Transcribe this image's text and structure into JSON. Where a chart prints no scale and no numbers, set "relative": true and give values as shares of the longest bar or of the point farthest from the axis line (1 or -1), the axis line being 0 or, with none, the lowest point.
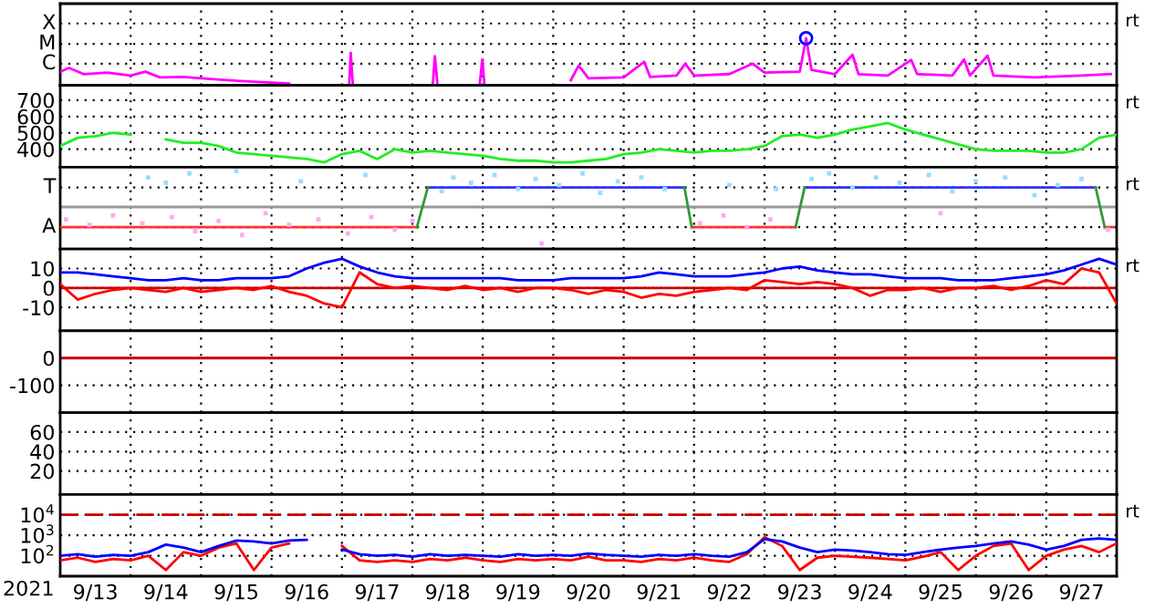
{
  "chart_data": [
    {
      "type": "line",
      "relative": true,
      "grid": true,
      "tick_labels": "y",
      "annotations": [
        "rt"
      ],
      "xlim": [
        "2021-09-13T00:00",
        "2021-09-28T00:00"
      ],
      "xticks": [
        {
          "value": "2021-09-14T00:00",
          "label": null
        },
        {
          "value": "2021-09-15T00:00",
          "label": null
        },
        {
          "value": "2021-09-16T00:00",
          "label": null
        },
        {
          "value": "2021-09-17T00:00",
          "label": null
        },
        {
          "value": "2021-09-18T00:00",
          "label": null
        },
        {
          "value": "2021-09-19T00:00",
          "label": null
        },
        {
          "value": "2021-09-20T00:00",
          "label": null
        },
        {
          "value": "2021-09-21T00:00",
          "label": null
        },
        {
          "value": "2021-09-22T00:00",
          "label": null
        },
        {
          "value": "2021-09-23T00:00",
          "label": null
        },
        {
          "value": "2021-09-24T00:00",
          "label": null
        },
        {
          "value": "2021-09-25T00:00",
          "label": null
        },
        {
          "value": "2021-09-26T00:00",
          "label": null
        },
        {
          "value": "2021-09-27T00:00",
          "label": null
        }
      ],
      "ref_lines": [
        {
          "axis": "y",
          "value": 0.46,
          "label": "C",
          "color": "#000000",
          "line_style": "dotted"
        },
        {
          "axis": "y",
          "value": 0.88,
          "label": "M",
          "color": "#000000",
          "line_style": "dotted"
        },
        {
          "axis": "y",
          "value": 1.31,
          "label": "X",
          "color": "#000000",
          "line_style": "dotted"
        }
      ],
      "series": [
        {
          "color": "#ff00ff",
          "x": [
            "2021-09-13T00:00",
            "2021-09-13T03:00",
            "2021-09-13T08:00",
            "2021-09-13T16:00",
            "2021-09-14T00:00",
            "2021-09-14T05:00",
            "2021-09-14T10:00",
            "2021-09-14T18:00",
            "2021-09-15T00:00",
            "2021-09-15T12:00",
            "2021-09-16T00:00",
            "2021-09-16T06:00",
            "2021-09-16T12:00",
            "2021-09-17T02:30",
            "2021-09-17T03:00",
            "2021-09-17T03:40",
            "2021-09-17T06:00",
            "2021-09-18T07:00",
            "2021-09-18T07:40",
            "2021-09-18T08:30",
            "2021-09-18T12:00",
            "2021-09-18T23:00",
            "2021-09-18T23:50",
            "2021-09-19T00:30",
            "2021-09-19T03:00",
            "2021-09-20T06:00",
            "2021-09-20T08:40",
            "2021-09-20T12:00",
            "2021-09-21T00:00",
            "2021-09-21T07:00",
            "2021-09-21T09:00",
            "2021-09-21T18:00",
            "2021-09-21T21:00",
            "2021-09-22T00:00",
            "2021-09-22T12:00",
            "2021-09-22T20:00",
            "2021-09-23T00:00",
            "2021-09-23T12:00",
            "2021-09-23T14:10",
            "2021-09-23T16:00",
            "2021-09-24T00:00",
            "2021-09-24T06:00",
            "2021-09-24T08:00",
            "2021-09-24T18:00",
            "2021-09-25T02:00",
            "2021-09-25T04:00",
            "2021-09-25T16:00",
            "2021-09-25T20:00",
            "2021-09-25T22:00",
            "2021-09-26T04:00",
            "2021-09-26T06:00",
            "2021-09-26T20:00",
            "2021-09-27T12:00",
            "2021-09-27T22:00"
          ],
          "values": [
            0.29,
            0.37,
            0.24,
            0.27,
            0.21,
            0.29,
            0.17,
            0.18,
            0.15,
            0.1,
            0.06,
            0.04,
            null,
            0.06,
            0.69,
            0.06,
            null,
            0.06,
            0.62,
            0.06,
            null,
            0.06,
            0.55,
            0.06,
            null,
            0.11,
            0.42,
            0.15,
            0.17,
            0.5,
            0.18,
            0.21,
            0.46,
            0.21,
            0.24,
            0.46,
            0.27,
            0.29,
            1.0,
            0.33,
            0.24,
            0.65,
            0.24,
            0.21,
            0.54,
            0.24,
            0.21,
            0.55,
            0.21,
            0.63,
            0.21,
            0.17,
            0.21,
            0.24
          ]
        },
        {
          "type": "scatter",
          "marker": "circle",
          "color": "#0000ff",
          "x": [
            "2021-09-23T14:10"
          ],
          "values": [
            1.0
          ]
        }
      ]
    },
    {
      "type": "line",
      "grid": true,
      "tick_labels": "y",
      "annotations": [
        "rt"
      ],
      "xlim": [
        "2021-09-13T00:00",
        "2021-09-28T00:00"
      ],
      "xticks": [
        {
          "value": "2021-09-14T00:00",
          "label": null
        },
        {
          "value": "2021-09-15T00:00",
          "label": null
        },
        {
          "value": "2021-09-16T00:00",
          "label": null
        },
        {
          "value": "2021-09-17T00:00",
          "label": null
        },
        {
          "value": "2021-09-18T00:00",
          "label": null
        },
        {
          "value": "2021-09-19T00:00",
          "label": null
        },
        {
          "value": "2021-09-20T00:00",
          "label": null
        },
        {
          "value": "2021-09-21T00:00",
          "label": null
        },
        {
          "value": "2021-09-22T00:00",
          "label": null
        },
        {
          "value": "2021-09-23T00:00",
          "label": null
        },
        {
          "value": "2021-09-24T00:00",
          "label": null
        },
        {
          "value": "2021-09-25T00:00",
          "label": null
        },
        {
          "value": "2021-09-26T00:00",
          "label": null
        },
        {
          "value": "2021-09-27T00:00",
          "label": null
        }
      ],
      "ylim": [
        290,
        790
      ],
      "yticks": [
        400,
        500,
        600,
        700
      ],
      "x": [
        "2021-09-13T00:00",
        "2021-09-13T06:00",
        "2021-09-13T12:00",
        "2021-09-13T18:00",
        "2021-09-14T00:00",
        "2021-09-14T06:00",
        "2021-09-14T12:00",
        "2021-09-14T18:00",
        "2021-09-15T00:00",
        "2021-09-15T06:00",
        "2021-09-15T12:00",
        "2021-09-15T18:00",
        "2021-09-16T00:00",
        "2021-09-16T06:00",
        "2021-09-16T12:00",
        "2021-09-16T18:00",
        "2021-09-17T00:00",
        "2021-09-17T06:00",
        "2021-09-17T12:00",
        "2021-09-17T18:00",
        "2021-09-18T00:00",
        "2021-09-18T06:00",
        "2021-09-18T12:00",
        "2021-09-18T18:00",
        "2021-09-19T00:00",
        "2021-09-19T06:00",
        "2021-09-19T12:00",
        "2021-09-19T18:00",
        "2021-09-20T00:00",
        "2021-09-20T06:00",
        "2021-09-20T12:00",
        "2021-09-20T18:00",
        "2021-09-21T00:00",
        "2021-09-21T06:00",
        "2021-09-21T12:00",
        "2021-09-21T18:00",
        "2021-09-22T00:00",
        "2021-09-22T06:00",
        "2021-09-22T12:00",
        "2021-09-22T18:00",
        "2021-09-23T00:00",
        "2021-09-23T06:00",
        "2021-09-23T12:00",
        "2021-09-23T18:00",
        "2021-09-24T00:00",
        "2021-09-24T06:00",
        "2021-09-24T12:00",
        "2021-09-24T18:00",
        "2021-09-25T00:00",
        "2021-09-25T06:00",
        "2021-09-25T12:00",
        "2021-09-25T18:00",
        "2021-09-26T00:00",
        "2021-09-26T06:00",
        "2021-09-26T12:00",
        "2021-09-26T18:00",
        "2021-09-27T00:00",
        "2021-09-27T06:00",
        "2021-09-27T12:00",
        "2021-09-27T18:00",
        "2021-09-28T00:00"
      ],
      "series": [
        {
          "color": "#22ee22",
          "values": [
            420,
            470,
            480,
            500,
            490,
            null,
            460,
            440,
            440,
            420,
            380,
            370,
            360,
            350,
            340,
            320,
            370,
            390,
            340,
            400,
            380,
            390,
            380,
            370,
            360,
            340,
            330,
            330,
            320,
            320,
            330,
            340,
            370,
            380,
            400,
            390,
            380,
            390,
            390,
            400,
            420,
            480,
            490,
            470,
            490,
            520,
            540,
            560,
            520,
            490,
            460,
            430,
            400,
            390,
            390,
            390,
            380,
            380,
            400,
            470,
            490
          ]
        }
      ]
    },
    {
      "type": "line",
      "relative": true,
      "grid": true,
      "tick_labels": "y",
      "annotations": [
        "rt"
      ],
      "xlim": [
        "2021-09-13T00:00",
        "2021-09-28T00:00"
      ],
      "xticks": [
        {
          "value": "2021-09-14T00:00",
          "label": null
        },
        {
          "value": "2021-09-15T00:00",
          "label": null
        },
        {
          "value": "2021-09-16T00:00",
          "label": null
        },
        {
          "value": "2021-09-17T00:00",
          "label": null
        },
        {
          "value": "2021-09-18T00:00",
          "label": null
        },
        {
          "value": "2021-09-19T00:00",
          "label": null
        },
        {
          "value": "2021-09-20T00:00",
          "label": null
        },
        {
          "value": "2021-09-21T00:00",
          "label": null
        },
        {
          "value": "2021-09-22T00:00",
          "label": null
        },
        {
          "value": "2021-09-23T00:00",
          "label": null
        },
        {
          "value": "2021-09-24T00:00",
          "label": null
        },
        {
          "value": "2021-09-25T00:00",
          "label": null
        },
        {
          "value": "2021-09-26T00:00",
          "label": null
        },
        {
          "value": "2021-09-27T00:00",
          "label": null
        }
      ],
      "ref_lines": [
        {
          "axis": "y",
          "value": 0.28,
          "label": "A",
          "color": "#000000",
          "line_style": "dotted"
        },
        {
          "axis": "y",
          "value": 0.79,
          "label": "T",
          "color": "#000000",
          "line_style": "dotted"
        },
        {
          "axis": "y",
          "value": 0.54,
          "color": "#999999",
          "line_style": "solid"
        }
      ],
      "series": [
        {
          "type": "scatter",
          "marker": "square",
          "color": "#99ddff",
          "x": [
            "2021-09-14T06:00",
            "2021-09-14T12:00",
            "2021-09-14T20:00",
            "2021-09-15T12:00",
            "2021-09-16T10:00",
            "2021-09-17T08:00",
            "2021-09-18T10:00",
            "2021-09-18T14:00",
            "2021-09-18T20:00",
            "2021-09-19T04:00",
            "2021-09-19T12:00",
            "2021-09-19T18:00",
            "2021-09-20T02:00",
            "2021-09-20T10:00",
            "2021-09-20T16:00",
            "2021-09-20T22:00",
            "2021-09-21T06:00",
            "2021-09-21T14:00",
            "2021-09-22T12:00",
            "2021-09-23T04:00",
            "2021-09-23T16:00",
            "2021-09-23T22:00",
            "2021-09-24T06:00",
            "2021-09-24T14:00",
            "2021-09-24T22:00",
            "2021-09-25T08:00",
            "2021-09-25T16:00",
            "2021-09-26T00:00",
            "2021-09-26T10:00",
            "2021-09-26T20:00",
            "2021-09-27T04:00",
            "2021-09-27T12:00"
          ],
          "values": [
            0.92,
            0.85,
            0.97,
            1.0,
            0.87,
            0.95,
            0.74,
            0.92,
            0.85,
            0.95,
            0.77,
            0.9,
            0.82,
            0.97,
            0.72,
            0.87,
            0.92,
            0.77,
            0.82,
            0.77,
            0.9,
            0.97,
            0.79,
            0.92,
            0.85,
            0.95,
            0.74,
            0.87,
            0.92,
            0.69,
            0.82,
            0.9
          ]
        },
        {
          "type": "scatter",
          "marker": "square",
          "color": "#ffaaee",
          "x": [
            "2021-09-13T02:00",
            "2021-09-13T10:00",
            "2021-09-13T18:00",
            "2021-09-14T04:00",
            "2021-09-14T14:00",
            "2021-09-14T22:00",
            "2021-09-15T06:00",
            "2021-09-15T14:00",
            "2021-09-15T22:00",
            "2021-09-16T06:00",
            "2021-09-16T16:00",
            "2021-09-17T02:00",
            "2021-09-17T10:00",
            "2021-09-17T18:00",
            "2021-09-18T00:00",
            "2021-09-19T20:00",
            "2021-09-22T02:00",
            "2021-09-22T10:00",
            "2021-09-22T18:00",
            "2021-09-23T02:00",
            "2021-09-25T12:00",
            "2021-09-27T21:00"
          ],
          "values": [
            0.38,
            0.31,
            0.43,
            0.33,
            0.41,
            0.23,
            0.36,
            0.18,
            0.46,
            0.31,
            0.38,
            0.2,
            0.41,
            0.25,
            0.36,
            0.07,
            0.33,
            0.43,
            0.28,
            0.38,
            0.46,
            0.25
          ]
        },
        {
          "color": "#ff3333",
          "x": [
            "2021-09-13T00:00",
            "2021-09-18T01:33",
            "2021-09-20T00:00",
            "2021-09-21T23:11",
            "2021-09-23T10:34",
            "2021-09-25T00:00",
            "2021-09-27T19:56",
            "2021-09-27T23:00"
          ],
          "values": [
            0.28,
            0.28,
            null,
            0.28,
            0.28,
            null,
            0.28,
            0.28
          ]
        },
        {
          "color": "#3333ff",
          "x": [
            "2021-09-18T05:16",
            "2021-09-21T20:43",
            "2021-09-22T12:00",
            "2021-09-23T13:40",
            "2021-09-27T16:50"
          ],
          "values": [
            0.79,
            0.79,
            null,
            0.79,
            0.79
          ]
        },
        {
          "color": "#339933",
          "x": [
            "2021-09-18T01:33",
            "2021-09-18T05:16",
            "2021-09-20T00:00",
            "2021-09-21T20:43",
            "2021-09-21T23:11",
            "2021-09-22T12:00",
            "2021-09-23T10:34",
            "2021-09-23T13:40",
            "2021-09-25T00:00",
            "2021-09-27T16:50",
            "2021-09-27T19:56"
          ],
          "values": [
            0.28,
            0.79,
            null,
            0.79,
            0.28,
            null,
            0.28,
            0.79,
            null,
            0.79,
            0.28
          ]
        }
      ]
    },
    {
      "type": "line",
      "grid": true,
      "tick_labels": "y",
      "annotations": [
        "rt"
      ],
      "xlim": [
        "2021-09-13T00:00",
        "2021-09-28T00:00"
      ],
      "xticks": [
        {
          "value": "2021-09-14T00:00",
          "label": null
        },
        {
          "value": "2021-09-15T00:00",
          "label": null
        },
        {
          "value": "2021-09-16T00:00",
          "label": null
        },
        {
          "value": "2021-09-17T00:00",
          "label": null
        },
        {
          "value": "2021-09-18T00:00",
          "label": null
        },
        {
          "value": "2021-09-19T00:00",
          "label": null
        },
        {
          "value": "2021-09-20T00:00",
          "label": null
        },
        {
          "value": "2021-09-21T00:00",
          "label": null
        },
        {
          "value": "2021-09-22T00:00",
          "label": null
        },
        {
          "value": "2021-09-23T00:00",
          "label": null
        },
        {
          "value": "2021-09-24T00:00",
          "label": null
        },
        {
          "value": "2021-09-25T00:00",
          "label": null
        },
        {
          "value": "2021-09-26T00:00",
          "label": null
        },
        {
          "value": "2021-09-27T00:00",
          "label": null
        }
      ],
      "ylim": [
        -22,
        20
      ],
      "yticks": [
        -10,
        0,
        10
      ],
      "ref_lines": [
        {
          "axis": "y",
          "value": 0,
          "color": "#cc0000",
          "line_style": "solid"
        }
      ],
      "x": [
        "2021-09-13T00:00",
        "2021-09-13T06:00",
        "2021-09-13T12:00",
        "2021-09-13T18:00",
        "2021-09-14T00:00",
        "2021-09-14T06:00",
        "2021-09-14T12:00",
        "2021-09-14T18:00",
        "2021-09-15T00:00",
        "2021-09-15T06:00",
        "2021-09-15T12:00",
        "2021-09-15T18:00",
        "2021-09-16T00:00",
        "2021-09-16T06:00",
        "2021-09-16T12:00",
        "2021-09-16T18:00",
        "2021-09-17T00:00",
        "2021-09-17T06:00",
        "2021-09-17T12:00",
        "2021-09-17T18:00",
        "2021-09-18T00:00",
        "2021-09-18T06:00",
        "2021-09-18T12:00",
        "2021-09-18T18:00",
        "2021-09-19T00:00",
        "2021-09-19T06:00",
        "2021-09-19T12:00",
        "2021-09-19T18:00",
        "2021-09-20T00:00",
        "2021-09-20T06:00",
        "2021-09-20T12:00",
        "2021-09-20T18:00",
        "2021-09-21T00:00",
        "2021-09-21T06:00",
        "2021-09-21T12:00",
        "2021-09-21T18:00",
        "2021-09-22T00:00",
        "2021-09-22T06:00",
        "2021-09-22T12:00",
        "2021-09-22T18:00",
        "2021-09-23T00:00",
        "2021-09-23T06:00",
        "2021-09-23T12:00",
        "2021-09-23T18:00",
        "2021-09-24T00:00",
        "2021-09-24T06:00",
        "2021-09-24T12:00",
        "2021-09-24T18:00",
        "2021-09-25T00:00",
        "2021-09-25T06:00",
        "2021-09-25T12:00",
        "2021-09-25T18:00",
        "2021-09-26T00:00",
        "2021-09-26T06:00",
        "2021-09-26T12:00",
        "2021-09-26T18:00",
        "2021-09-27T00:00",
        "2021-09-27T06:00",
        "2021-09-27T12:00",
        "2021-09-27T18:00",
        "2021-09-28T00:00"
      ],
      "series": [
        {
          "color": "#0000ff",
          "values": [
            8,
            8,
            7,
            6,
            5,
            4,
            4,
            5,
            4,
            4,
            5,
            5,
            5,
            6,
            10,
            13,
            15,
            11,
            8,
            6,
            5,
            5,
            5,
            5,
            5,
            5,
            4,
            4,
            4,
            5,
            5,
            5,
            5,
            6,
            8,
            7,
            6,
            6,
            6,
            7,
            8,
            10,
            11,
            9,
            8,
            7,
            7,
            6,
            5,
            5,
            5,
            4,
            4,
            4,
            5,
            6,
            7,
            9,
            12,
            15,
            12
          ]
        },
        {
          "color": "#ff0000",
          "values": [
            2,
            -6,
            -3,
            -1,
            0,
            -1,
            -2,
            0,
            -2,
            -1,
            0,
            -1,
            1,
            -2,
            -4,
            -8,
            -10,
            8,
            2,
            0,
            1,
            0,
            -1,
            1,
            -1,
            0,
            -2,
            0,
            0,
            -1,
            -3,
            -1,
            -2,
            -5,
            -3,
            -4,
            -2,
            -1,
            0,
            -1,
            4,
            3,
            2,
            3,
            2,
            0,
            -4,
            -1,
            -1,
            0,
            -2,
            0,
            0,
            1,
            -1,
            1,
            4,
            2,
            10,
            8,
            -8
          ]
        }
      ]
    },
    {
      "type": "line",
      "grid": true,
      "tick_labels": "y",
      "xlim": [
        "2021-09-13T00:00",
        "2021-09-28T00:00"
      ],
      "xticks": [
        {
          "value": "2021-09-14T00:00",
          "label": null
        },
        {
          "value": "2021-09-15T00:00",
          "label": null
        },
        {
          "value": "2021-09-16T00:00",
          "label": null
        },
        {
          "value": "2021-09-17T00:00",
          "label": null
        },
        {
          "value": "2021-09-18T00:00",
          "label": null
        },
        {
          "value": "2021-09-19T00:00",
          "label": null
        },
        {
          "value": "2021-09-20T00:00",
          "label": null
        },
        {
          "value": "2021-09-21T00:00",
          "label": null
        },
        {
          "value": "2021-09-22T00:00",
          "label": null
        },
        {
          "value": "2021-09-23T00:00",
          "label": null
        },
        {
          "value": "2021-09-24T00:00",
          "label": null
        },
        {
          "value": "2021-09-25T00:00",
          "label": null
        },
        {
          "value": "2021-09-26T00:00",
          "label": null
        },
        {
          "value": "2021-09-27T00:00",
          "label": null
        }
      ],
      "ylim": [
        -200,
        100
      ],
      "yticks": [
        -100,
        0
      ],
      "ref_lines": [
        {
          "axis": "y",
          "value": 0,
          "color": "#cc0000",
          "line_style": "solid"
        }
      ]
    },
    {
      "type": "line",
      "grid": true,
      "tick_labels": "y",
      "xlim": [
        "2021-09-13T00:00",
        "2021-09-28T00:00"
      ],
      "xticks": [
        {
          "value": "2021-09-14T00:00",
          "label": null
        },
        {
          "value": "2021-09-15T00:00",
          "label": null
        },
        {
          "value": "2021-09-16T00:00",
          "label": null
        },
        {
          "value": "2021-09-17T00:00",
          "label": null
        },
        {
          "value": "2021-09-18T00:00",
          "label": null
        },
        {
          "value": "2021-09-19T00:00",
          "label": null
        },
        {
          "value": "2021-09-20T00:00",
          "label": null
        },
        {
          "value": "2021-09-21T00:00",
          "label": null
        },
        {
          "value": "2021-09-22T00:00",
          "label": null
        },
        {
          "value": "2021-09-23T00:00",
          "label": null
        },
        {
          "value": "2021-09-24T00:00",
          "label": null
        },
        {
          "value": "2021-09-25T00:00",
          "label": null
        },
        {
          "value": "2021-09-26T00:00",
          "label": null
        },
        {
          "value": "2021-09-27T00:00",
          "label": null
        }
      ],
      "ylim": [
        -4,
        80
      ],
      "yticks": [
        20,
        40,
        60
      ]
    },
    {
      "type": "line",
      "log": "y",
      "grid": true,
      "annotations": [
        "rt"
      ],
      "xlabel": "2021",
      "xlim": [
        "2021-09-13T00:00",
        "2021-09-28T00:00"
      ],
      "xticks": [
        {
          "value": "2021-09-13T12:00",
          "label": "9/13"
        },
        {
          "value": "2021-09-14T00:00",
          "label": null
        },
        {
          "value": "2021-09-14T12:00",
          "label": "9/14"
        },
        {
          "value": "2021-09-15T00:00",
          "label": null
        },
        {
          "value": "2021-09-15T12:00",
          "label": "9/15"
        },
        {
          "value": "2021-09-16T00:00",
          "label": null
        },
        {
          "value": "2021-09-16T12:00",
          "label": "9/16"
        },
        {
          "value": "2021-09-17T00:00",
          "label": null
        },
        {
          "value": "2021-09-17T12:00",
          "label": "9/17"
        },
        {
          "value": "2021-09-18T00:00",
          "label": null
        },
        {
          "value": "2021-09-18T12:00",
          "label": "9/18"
        },
        {
          "value": "2021-09-19T00:00",
          "label": null
        },
        {
          "value": "2021-09-19T12:00",
          "label": "9/19"
        },
        {
          "value": "2021-09-20T00:00",
          "label": null
        },
        {
          "value": "2021-09-20T12:00",
          "label": "9/20"
        },
        {
          "value": "2021-09-21T00:00",
          "label": null
        },
        {
          "value": "2021-09-21T12:00",
          "label": "9/21"
        },
        {
          "value": "2021-09-22T00:00",
          "label": null
        },
        {
          "value": "2021-09-22T12:00",
          "label": "9/22"
        },
        {
          "value": "2021-09-23T00:00",
          "label": null
        },
        {
          "value": "2021-09-23T12:00",
          "label": "9/23"
        },
        {
          "value": "2021-09-24T00:00",
          "label": null
        },
        {
          "value": "2021-09-24T12:00",
          "label": "9/24"
        },
        {
          "value": "2021-09-25T00:00",
          "label": null
        },
        {
          "value": "2021-09-25T12:00",
          "label": "9/25"
        },
        {
          "value": "2021-09-26T00:00",
          "label": null
        },
        {
          "value": "2021-09-26T12:00",
          "label": "9/26"
        },
        {
          "value": "2021-09-27T00:00",
          "label": null
        },
        {
          "value": "2021-09-27T12:00",
          "label": "9/27"
        }
      ],
      "ylim": [
        10,
        100000
      ],
      "yticks": [
        {
          "value": 100,
          "label": "10$^{2}$"
        },
        {
          "value": 1000,
          "label": "10$^{3}$"
        },
        {
          "value": 10000,
          "label": "10$^{4}$"
        }
      ],
      "ref_lines": [
        {
          "axis": "y",
          "value": 10000,
          "color": "#cc0000",
          "line_style": "dashed"
        }
      ],
      "x": [
        "2021-09-13T00:00",
        "2021-09-13T06:00",
        "2021-09-13T12:00",
        "2021-09-13T18:00",
        "2021-09-14T00:00",
        "2021-09-14T06:00",
        "2021-09-14T12:00",
        "2021-09-14T18:00",
        "2021-09-15T00:00",
        "2021-09-15T06:00",
        "2021-09-15T12:00",
        "2021-09-15T18:00",
        "2021-09-16T00:00",
        "2021-09-16T06:00",
        "2021-09-16T12:00",
        "2021-09-16T18:00",
        "2021-09-17T00:00",
        "2021-09-17T06:00",
        "2021-09-17T12:00",
        "2021-09-17T18:00",
        "2021-09-18T00:00",
        "2021-09-18T06:00",
        "2021-09-18T12:00",
        "2021-09-18T18:00",
        "2021-09-19T00:00",
        "2021-09-19T06:00",
        "2021-09-19T12:00",
        "2021-09-19T18:00",
        "2021-09-20T00:00",
        "2021-09-20T06:00",
        "2021-09-20T12:00",
        "2021-09-20T18:00",
        "2021-09-21T00:00",
        "2021-09-21T06:00",
        "2021-09-21T12:00",
        "2021-09-21T18:00",
        "2021-09-22T00:00",
        "2021-09-22T06:00",
        "2021-09-22T12:00",
        "2021-09-22T18:00",
        "2021-09-23T00:00",
        "2021-09-23T06:00",
        "2021-09-23T12:00",
        "2021-09-23T18:00",
        "2021-09-24T00:00",
        "2021-09-24T06:00",
        "2021-09-24T12:00",
        "2021-09-24T18:00",
        "2021-09-25T00:00",
        "2021-09-25T06:00",
        "2021-09-25T12:00",
        "2021-09-25T18:00",
        "2021-09-26T00:00",
        "2021-09-26T06:00",
        "2021-09-26T12:00",
        "2021-09-26T18:00",
        "2021-09-27T00:00",
        "2021-09-27T06:00",
        "2021-09-27T12:00",
        "2021-09-27T18:00",
        "2021-09-28T00:00"
      ],
      "series": [
        {
          "color": "#ff0000",
          "values": [
            60,
            80,
            50,
            70,
            60,
            100,
            20,
            150,
            100,
            250,
            400,
            20,
            250,
            400,
            null,
            null,
            300,
            60,
            50,
            60,
            50,
            70,
            60,
            80,
            60,
            50,
            70,
            60,
            70,
            60,
            90,
            60,
            60,
            50,
            70,
            60,
            80,
            60,
            50,
            120,
            800,
            300,
            20,
            80,
            100,
            90,
            80,
            70,
            60,
            90,
            150,
            20,
            100,
            300,
            400,
            20,
            100,
            200,
            300,
            150,
            400
          ]
        },
        {
          "color": "#0000ff",
          "values": [
            100,
            120,
            90,
            110,
            100,
            150,
            350,
            250,
            150,
            300,
            550,
            500,
            400,
            550,
            600,
            null,
            200,
            120,
            100,
            110,
            90,
            120,
            100,
            110,
            100,
            90,
            120,
            100,
            110,
            100,
            130,
            110,
            100,
            90,
            110,
            100,
            120,
            100,
            90,
            150,
            650,
            500,
            250,
            150,
            200,
            180,
            150,
            120,
            110,
            150,
            200,
            250,
            300,
            400,
            500,
            350,
            200,
            300,
            600,
            700,
            600
          ]
        }
      ]
    }
  ]
}
